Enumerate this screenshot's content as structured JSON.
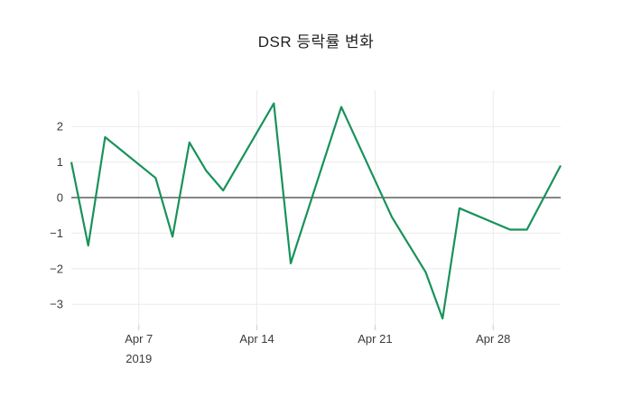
{
  "chart_data": {
    "type": "line",
    "title": "DSR 등락률 변화",
    "x": [
      "2019-04-03",
      "2019-04-04",
      "2019-04-05",
      "2019-04-08",
      "2019-04-09",
      "2019-04-10",
      "2019-04-11",
      "2019-04-12",
      "2019-04-15",
      "2019-04-16",
      "2019-04-19",
      "2019-04-22",
      "2019-04-24",
      "2019-04-25",
      "2019-04-26",
      "2019-04-29",
      "2019-04-30",
      "2019-05-02"
    ],
    "values": [
      1.0,
      -1.35,
      1.7,
      0.55,
      -1.1,
      1.55,
      0.75,
      0.2,
      2.65,
      -1.85,
      2.55,
      -0.55,
      -2.1,
      -3.4,
      -0.3,
      -0.9,
      -0.9,
      0.9
    ],
    "xlabel": "",
    "ylabel": "",
    "x_ticks": [
      {
        "label": "Apr 7",
        "date": "2019-04-07",
        "sublabel": "2019"
      },
      {
        "label": "Apr 14",
        "date": "2019-04-14",
        "sublabel": ""
      },
      {
        "label": "Apr 21",
        "date": "2019-04-21",
        "sublabel": ""
      },
      {
        "label": "Apr 28",
        "date": "2019-04-28",
        "sublabel": ""
      }
    ],
    "y_ticks": [
      2,
      1,
      0,
      -1,
      -2,
      -3
    ],
    "ylim": [
      -3.6,
      3.05
    ],
    "grid": true,
    "legend": "none",
    "colors": {
      "line": "#18925a",
      "zero_line": "#3d3d3d",
      "grid": "#ebebeb",
      "tick_mark": "#cccccc",
      "text": "#3b3b3b",
      "background": "#ffffff"
    }
  }
}
